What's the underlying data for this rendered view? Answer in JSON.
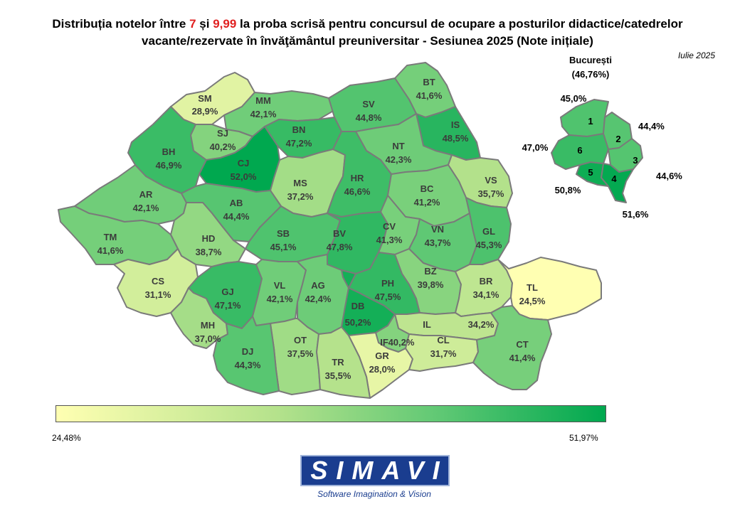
{
  "title": {
    "part1": "Distribuția notelor între ",
    "n1": "7",
    "part2": " și ",
    "n2": "9,99",
    "part3": " la proba scrisă pentru concursul de ocupare a posturilor didactice/catedrelor",
    "line2": "vacante/rezervate în învăţământul preuniversitar - Sesiunea 2025 (Note inițiale)"
  },
  "date": "Iulie 2025",
  "colors": {
    "low": "#ffffb2",
    "high": "#00a84f",
    "border": "#7a7a7a"
  },
  "scale": {
    "min_label": "24,48%",
    "max_label": "51,97%",
    "min": 24.48,
    "max": 51.97
  },
  "counties": [
    {
      "code": "SM",
      "value": 28.9,
      "pct": "28,9%"
    },
    {
      "code": "MM",
      "value": 42.1,
      "pct": "42,1%"
    },
    {
      "code": "BT",
      "value": 41.6,
      "pct": "41,6%"
    },
    {
      "code": "SV",
      "value": 44.8,
      "pct": "44,8%"
    },
    {
      "code": "SJ",
      "value": 40.2,
      "pct": "40,2%"
    },
    {
      "code": "BN",
      "value": 47.2,
      "pct": "47,2%"
    },
    {
      "code": "IS",
      "value": 48.5,
      "pct": "48,5%"
    },
    {
      "code": "BH",
      "value": 46.9,
      "pct": "46,9%"
    },
    {
      "code": "CJ",
      "value": 52.0,
      "pct": "52,0%"
    },
    {
      "code": "NT",
      "value": 42.3,
      "pct": "42,3%"
    },
    {
      "code": "MS",
      "value": 37.2,
      "pct": "37,2%"
    },
    {
      "code": "HR",
      "value": 46.6,
      "pct": "46,6%"
    },
    {
      "code": "VS",
      "value": 35.7,
      "pct": "35,7%"
    },
    {
      "code": "AR",
      "value": 42.1,
      "pct": "42,1%"
    },
    {
      "code": "AB",
      "value": 44.4,
      "pct": "44,4%"
    },
    {
      "code": "BC",
      "value": 41.2,
      "pct": "41,2%"
    },
    {
      "code": "TM",
      "value": 41.6,
      "pct": "41,6%"
    },
    {
      "code": "HD",
      "value": 38.7,
      "pct": "38,7%"
    },
    {
      "code": "SB",
      "value": 45.1,
      "pct": "45,1%"
    },
    {
      "code": "BV",
      "value": 47.8,
      "pct": "47,8%"
    },
    {
      "code": "CV",
      "value": 41.3,
      "pct": "41,3%"
    },
    {
      "code": "VN",
      "value": 43.7,
      "pct": "43,7%"
    },
    {
      "code": "GL",
      "value": 45.3,
      "pct": "45,3%"
    },
    {
      "code": "CS",
      "value": 31.1,
      "pct": "31,1%"
    },
    {
      "code": "GJ",
      "value": 47.1,
      "pct": "47,1%"
    },
    {
      "code": "VL",
      "value": 42.1,
      "pct": "42,1%"
    },
    {
      "code": "AG",
      "value": 42.4,
      "pct": "42,4%"
    },
    {
      "code": "PH",
      "value": 47.5,
      "pct": "47,5%"
    },
    {
      "code": "BZ",
      "value": 39.8,
      "pct": "39,8%"
    },
    {
      "code": "BR",
      "value": 34.1,
      "pct": "34,1%"
    },
    {
      "code": "TL",
      "value": 24.5,
      "pct": "24,5%"
    },
    {
      "code": "DB",
      "value": 50.2,
      "pct": "50,2%"
    },
    {
      "code": "MH",
      "value": 37.0,
      "pct": "37,0%"
    },
    {
      "code": "IL",
      "value": 34.2,
      "pct": "34,2%"
    },
    {
      "code": "IF",
      "value": 40.2,
      "pct": "40,2%"
    },
    {
      "code": "OT",
      "value": 37.5,
      "pct": "37,5%"
    },
    {
      "code": "DJ",
      "value": 44.3,
      "pct": "44,3%"
    },
    {
      "code": "GR",
      "value": 28.0,
      "pct": "28,0%"
    },
    {
      "code": "CL",
      "value": 31.7,
      "pct": "31,7%"
    },
    {
      "code": "CT",
      "value": 41.4,
      "pct": "41,4%"
    },
    {
      "code": "TR",
      "value": 35.5,
      "pct": "35,5%"
    }
  ],
  "bucuresti": {
    "name": "București",
    "total": "(46,76%)",
    "sectors": [
      {
        "id": "1",
        "value": 45.0,
        "pct": "45,0%"
      },
      {
        "id": "2",
        "value": 44.4,
        "pct": "44,4%"
      },
      {
        "id": "3",
        "value": 44.6,
        "pct": "44,6%"
      },
      {
        "id": "4",
        "value": 51.6,
        "pct": "51,6%"
      },
      {
        "id": "5",
        "value": 50.8,
        "pct": "50,8%"
      },
      {
        "id": "6",
        "value": 47.0,
        "pct": "47,0%"
      }
    ]
  },
  "logo": {
    "name": "SIMAVI",
    "tagline": "Software Imagination & Vision"
  }
}
